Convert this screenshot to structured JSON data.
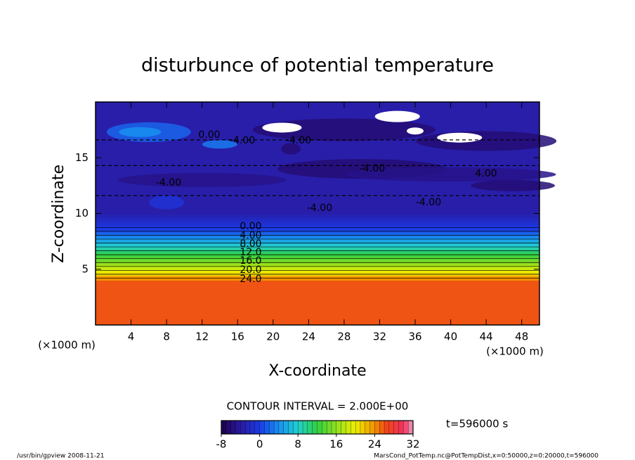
{
  "chart_data": {
    "type": "contour",
    "title": "disturbunce of potential temperature",
    "x_label": "X-coordinate",
    "y_label": "Z-coordinate",
    "x_unit": "(×1000 m)",
    "x_unit_secondary": "(×1000 m)",
    "xlim": [
      0,
      50
    ],
    "xticks": [
      4,
      8,
      12,
      16,
      20,
      24,
      28,
      32,
      36,
      40,
      44,
      48
    ],
    "ylim": [
      0,
      20
    ],
    "yticks": [
      5,
      10,
      15
    ],
    "contour_labels": [
      "0.00",
      "-4.00",
      "-4.00",
      "-4.00",
      "4.00",
      "-4.00",
      "-4.00",
      "-4.00",
      "0.00",
      "4.00",
      "8.00",
      "12.0",
      "16.0",
      "20.0",
      "24.0"
    ],
    "contour_interval_label": "CONTOUR INTERVAL = 2.000E+00",
    "time_label": "t=596000 s",
    "colorbar": {
      "lim": [
        -8,
        32
      ],
      "ticks": [
        -8,
        0,
        8,
        16,
        24,
        32
      ]
    },
    "footer_left": "/usr/bin/gpview   2008-11-21",
    "footer_right": "MarsCond_PotTemp.nc@PotTempDist,x=0:50000,z=0:20000,t=596000"
  }
}
